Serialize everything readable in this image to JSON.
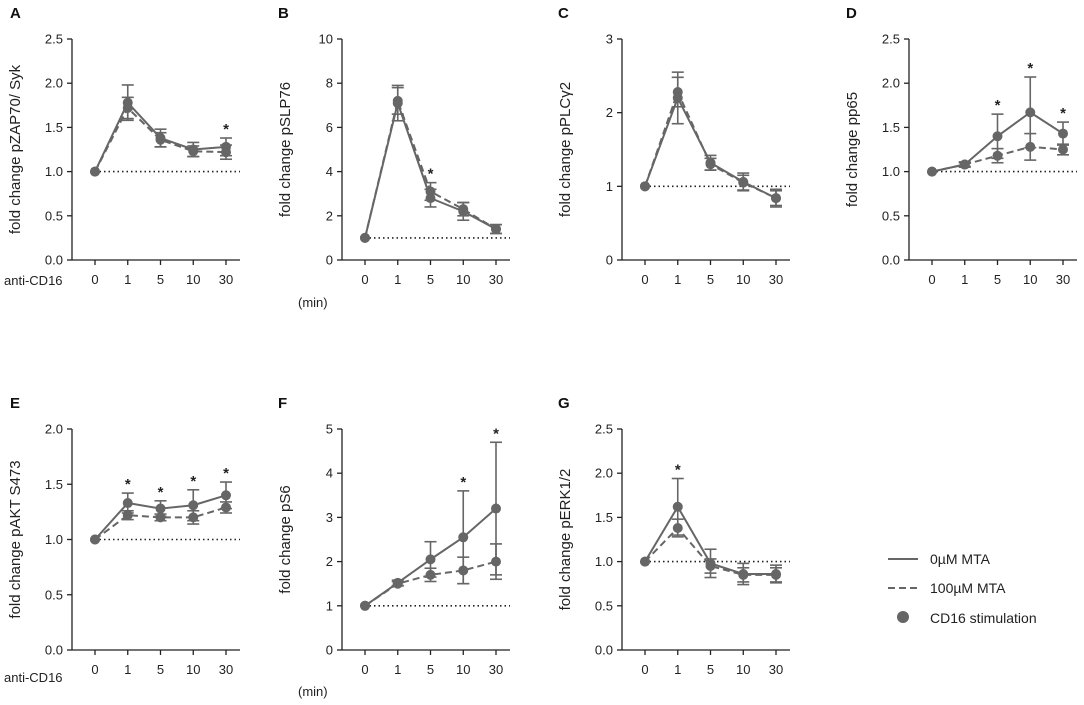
{
  "colors": {
    "series": "#666666",
    "axis": "#222222",
    "baseline": "#222222"
  },
  "x_categories": [
    "0",
    "1",
    "5",
    "10",
    "30"
  ],
  "side_labels": {
    "stimulus": "anti-CD16",
    "unit": "(min)"
  },
  "legend": {
    "solid": "0µM MTA",
    "dashed": "100µM MTA",
    "marker": "CD16 stimulation"
  },
  "chart_data": [
    {
      "letter": "A",
      "type": "line",
      "ylabel": "fold change pZAP70/ Syk",
      "yticks": [
        "0.0",
        "0.5",
        "1.0",
        "1.5",
        "2.0",
        "2.5"
      ],
      "ylim": [
        0,
        2.5
      ],
      "baseline": 1.0,
      "categories": [
        "0",
        "1",
        "5",
        "10",
        "30"
      ],
      "series": [
        {
          "name": "0µM MTA",
          "values": [
            1.0,
            1.78,
            1.38,
            1.25,
            1.28
          ],
          "err": [
            0,
            0.2,
            0.1,
            0.08,
            0.1
          ]
        },
        {
          "name": "100µM MTA",
          "values": [
            1.0,
            1.72,
            1.36,
            1.23,
            1.22
          ],
          "err": [
            0,
            0.12,
            0.08,
            0.06,
            0.08
          ]
        }
      ],
      "stars": [
        "",
        "",
        "",
        "",
        "*"
      ]
    },
    {
      "letter": "B",
      "type": "line",
      "ylabel": "fold change pSLP76",
      "yticks": [
        "0",
        "2",
        "4",
        "6",
        "8",
        "10"
      ],
      "ylim": [
        0,
        10
      ],
      "baseline": 1.0,
      "categories": [
        "0",
        "1",
        "5",
        "10",
        "30"
      ],
      "series": [
        {
          "name": "0µM MTA",
          "values": [
            1.0,
            7.1,
            2.8,
            2.2,
            1.4
          ],
          "err": [
            0,
            0.8,
            0.4,
            0.4,
            0.2
          ]
        },
        {
          "name": "100µM MTA",
          "values": [
            1.0,
            7.2,
            3.1,
            2.3,
            1.4
          ],
          "err": [
            0,
            0.6,
            0.4,
            0.3,
            0.2
          ]
        }
      ],
      "stars": [
        "",
        "",
        "*",
        "",
        ""
      ]
    },
    {
      "letter": "C",
      "type": "line",
      "ylabel": "fold change pPLCγ2",
      "yticks": [
        "0",
        "1",
        "2",
        "3"
      ],
      "ylim": [
        0,
        3
      ],
      "baseline": 1.0,
      "categories": [
        "0",
        "1",
        "5",
        "10",
        "30"
      ],
      "series": [
        {
          "name": "0µM MTA",
          "values": [
            1.0,
            2.2,
            1.32,
            1.06,
            0.84
          ],
          "err": [
            0,
            0.35,
            0.1,
            0.12,
            0.12
          ]
        },
        {
          "name": "100µM MTA",
          "values": [
            1.0,
            2.28,
            1.3,
            1.05,
            0.84
          ],
          "err": [
            0,
            0.2,
            0.08,
            0.1,
            0.1
          ]
        }
      ],
      "stars": [
        "",
        "",
        "",
        "",
        ""
      ]
    },
    {
      "letter": "D",
      "type": "line",
      "ylabel": "fold change pp65",
      "yticks": [
        "0.0",
        "0.5",
        "1.0",
        "1.5",
        "2.0",
        "2.5"
      ],
      "ylim": [
        0,
        2.5
      ],
      "baseline": 1.0,
      "categories": [
        "0",
        "1",
        "5",
        "10",
        "30"
      ],
      "series": [
        {
          "name": "0µM MTA",
          "values": [
            1.0,
            1.08,
            1.4,
            1.67,
            1.43
          ],
          "err": [
            0,
            0.03,
            0.25,
            0.4,
            0.13
          ]
        },
        {
          "name": "100µM MTA",
          "values": [
            1.0,
            1.08,
            1.18,
            1.28,
            1.25
          ],
          "err": [
            0,
            0.02,
            0.08,
            0.15,
            0.06
          ]
        }
      ],
      "stars": [
        "",
        "",
        "*",
        "*",
        "*"
      ]
    },
    {
      "letter": "E",
      "type": "line",
      "ylabel": "fold change pAKT S473",
      "yticks": [
        "0.0",
        "0.5",
        "1.0",
        "1.5",
        "2.0"
      ],
      "ylim": [
        0,
        2.0
      ],
      "baseline": 1.0,
      "categories": [
        "0",
        "1",
        "5",
        "10",
        "30"
      ],
      "series": [
        {
          "name": "0µM MTA",
          "values": [
            1.0,
            1.33,
            1.28,
            1.31,
            1.4
          ],
          "err": [
            0,
            0.09,
            0.07,
            0.14,
            0.12
          ]
        },
        {
          "name": "100µM MTA",
          "values": [
            1.0,
            1.22,
            1.2,
            1.2,
            1.29
          ],
          "err": [
            0,
            0.04,
            0.03,
            0.06,
            0.05
          ]
        }
      ],
      "stars": [
        "",
        "*",
        "*",
        "*",
        "*"
      ]
    },
    {
      "letter": "F",
      "type": "line",
      "ylabel": "fold change pS6",
      "yticks": [
        "0",
        "1",
        "2",
        "3",
        "4",
        "5"
      ],
      "ylim": [
        0,
        5
      ],
      "baseline": 1.0,
      "categories": [
        "0",
        "1",
        "5",
        "10",
        "30"
      ],
      "series": [
        {
          "name": "0µM MTA",
          "values": [
            1.0,
            1.52,
            2.05,
            2.55,
            3.2
          ],
          "err": [
            0,
            0.06,
            0.4,
            1.05,
            1.5
          ]
        },
        {
          "name": "100µM MTA",
          "values": [
            1.0,
            1.5,
            1.7,
            1.8,
            2.0
          ],
          "err": [
            0,
            0.05,
            0.15,
            0.3,
            0.4
          ]
        }
      ],
      "stars": [
        "",
        "",
        "",
        "*",
        "*"
      ]
    },
    {
      "letter": "G",
      "type": "line",
      "ylabel": "fold change pERK1/2",
      "yticks": [
        "0.0",
        "0.5",
        "1.0",
        "1.5",
        "2.0",
        "2.5"
      ],
      "ylim": [
        0,
        2.5
      ],
      "baseline": 1.0,
      "categories": [
        "0",
        "1",
        "5",
        "10",
        "30"
      ],
      "series": [
        {
          "name": "0µM MTA",
          "values": [
            1.0,
            1.62,
            0.98,
            0.86,
            0.86
          ],
          "err": [
            0,
            0.32,
            0.16,
            0.12,
            0.1
          ]
        },
        {
          "name": "100µM MTA",
          "values": [
            1.0,
            1.38,
            0.95,
            0.85,
            0.85
          ],
          "err": [
            0,
            0.1,
            0.08,
            0.08,
            0.08
          ]
        }
      ],
      "stars": [
        "",
        "*",
        "",
        "",
        ""
      ]
    }
  ]
}
